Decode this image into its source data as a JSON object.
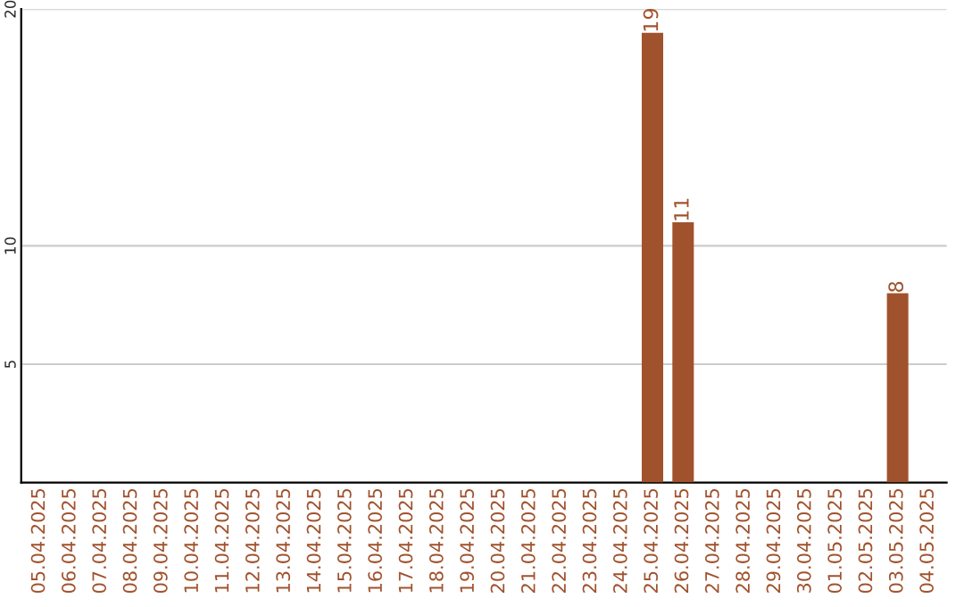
{
  "chart_data": {
    "type": "bar",
    "categories": [
      "05.04.2025",
      "06.04.2025",
      "07.04.2025",
      "08.04.2025",
      "09.04.2025",
      "10.04.2025",
      "11.04.2025",
      "12.04.2025",
      "13.04.2025",
      "14.04.2025",
      "15.04.2025",
      "16.04.2025",
      "17.04.2025",
      "18.04.2025",
      "19.04.2025",
      "20.04.2025",
      "21.04.2025",
      "22.04.2025",
      "23.04.2025",
      "24.04.2025",
      "25.04.2025",
      "26.04.2025",
      "27.04.2025",
      "28.04.2025",
      "29.04.2025",
      "30.04.2025",
      "01.05.2025",
      "02.05.2025",
      "03.05.2025",
      "04.05.2025"
    ],
    "values": [
      null,
      null,
      null,
      null,
      null,
      null,
      null,
      null,
      null,
      null,
      null,
      null,
      null,
      null,
      null,
      null,
      null,
      null,
      null,
      null,
      19,
      11,
      null,
      null,
      null,
      null,
      null,
      null,
      8,
      null
    ],
    "value_labels": [
      null,
      null,
      null,
      null,
      null,
      null,
      null,
      null,
      null,
      null,
      null,
      null,
      null,
      null,
      null,
      null,
      null,
      null,
      null,
      null,
      "19",
      "11",
      null,
      null,
      null,
      null,
      null,
      null,
      "8",
      null
    ],
    "color": "#a0522d",
    "ylim": [
      0,
      20
    ],
    "yticks": [
      5,
      10,
      20
    ],
    "grid": "y",
    "legend": false
  }
}
